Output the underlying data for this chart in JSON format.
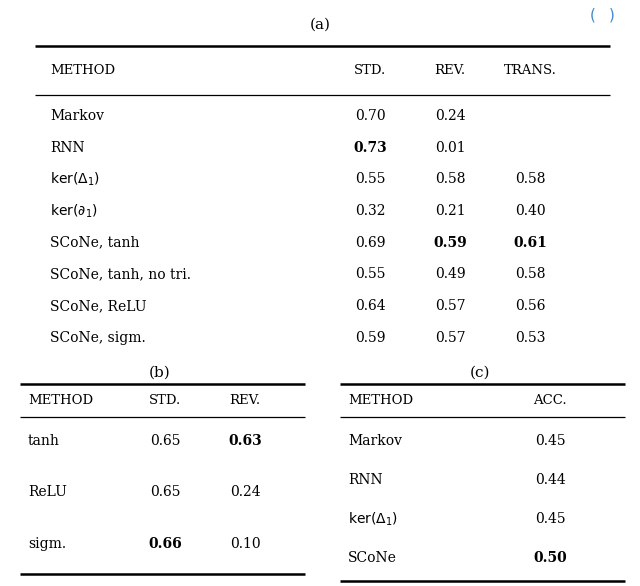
{
  "table_a_title": "(a)",
  "table_a_headers": [
    "Method",
    "Std.",
    "Rev.",
    "Trans."
  ],
  "table_a_rows": [
    [
      "Markov",
      "0.70",
      "0.24",
      ""
    ],
    [
      "RNN",
      "0.73",
      "0.01",
      ""
    ],
    [
      "ker($\\Delta_1$)",
      "0.55",
      "0.58",
      "0.58"
    ],
    [
      "ker($\\partial_1$)",
      "0.32",
      "0.21",
      "0.40"
    ],
    [
      "SCoNe, tanh",
      "0.69",
      "0.59",
      "0.61"
    ],
    [
      "SCoNe, tanh, no tri.",
      "0.55",
      "0.49",
      "0.58"
    ],
    [
      "SCoNe, ReLU",
      "0.64",
      "0.57",
      "0.56"
    ],
    [
      "SCoNe, sigm.",
      "0.59",
      "0.57",
      "0.53"
    ]
  ],
  "table_a_bold": [
    [
      false,
      false,
      false,
      false
    ],
    [
      false,
      true,
      false,
      false
    ],
    [
      false,
      false,
      false,
      false
    ],
    [
      false,
      false,
      false,
      false
    ],
    [
      false,
      false,
      true,
      true
    ],
    [
      false,
      false,
      false,
      false
    ],
    [
      false,
      false,
      false,
      false
    ],
    [
      false,
      false,
      false,
      false
    ]
  ],
  "table_b_title": "(b)",
  "table_b_headers": [
    "Method",
    "Std.",
    "Rev."
  ],
  "table_b_rows": [
    [
      "tanh",
      "0.65",
      "0.63"
    ],
    [
      "ReLU",
      "0.65",
      "0.24"
    ],
    [
      "sigm.",
      "0.66",
      "0.10"
    ]
  ],
  "table_b_bold": [
    [
      false,
      false,
      true
    ],
    [
      false,
      false,
      false
    ],
    [
      false,
      true,
      false
    ]
  ],
  "table_c_title": "(c)",
  "table_c_headers": [
    "Method",
    "Acc."
  ],
  "table_c_rows": [
    [
      "Markov",
      "0.45"
    ],
    [
      "RNN",
      "0.44"
    ],
    [
      "ker($\\Delta_1$)",
      "0.45"
    ],
    [
      "SCoNe",
      "0.50"
    ]
  ],
  "table_c_bold": [
    [
      false,
      false
    ],
    [
      false,
      false
    ],
    [
      false,
      false
    ],
    [
      false,
      true
    ]
  ]
}
